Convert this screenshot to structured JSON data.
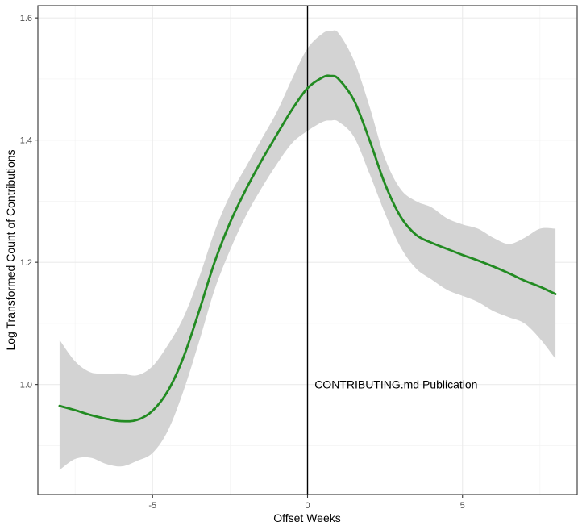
{
  "chart_data": {
    "type": "line",
    "xlabel": "Offset Weeks",
    "ylabel": "Log Transformed Count of Contributions",
    "xlim": [
      -8.7,
      8.7
    ],
    "ylim": [
      0.82,
      1.62
    ],
    "x_ticks": [
      -5,
      0,
      5
    ],
    "x_tick_labels": [
      "-5",
      "0",
      "5"
    ],
    "x_minor_ticks": [
      -7.5,
      -2.5,
      2.5,
      7.5
    ],
    "y_ticks": [
      1.0,
      1.2,
      1.4,
      1.6
    ],
    "y_tick_labels": [
      "1.0",
      "1.2",
      "1.4",
      "1.6"
    ],
    "y_minor_ticks": [
      0.9,
      1.1,
      1.3,
      1.5
    ],
    "grid": true,
    "vline": {
      "x": 0,
      "color": "#000000"
    },
    "annotation": {
      "text": "CONTRIBUTING.md Publication",
      "x": 0.2,
      "y": 1.0
    },
    "series": [
      {
        "color": "#228B22",
        "ribbon_color": "#d3d3d3",
        "x": [
          -8,
          -7.5,
          -7,
          -6.5,
          -6,
          -5.5,
          -5,
          -4.5,
          -4,
          -3.5,
          -3,
          -2.5,
          -2,
          -1.5,
          -1,
          -0.5,
          0,
          0.5,
          0.75,
          1,
          1.5,
          2,
          2.5,
          3,
          3.5,
          4,
          4.5,
          5,
          5.5,
          6,
          6.5,
          7,
          7.5,
          8
        ],
        "y": [
          0.965,
          0.958,
          0.95,
          0.944,
          0.94,
          0.942,
          0.957,
          0.99,
          1.045,
          1.12,
          1.2,
          1.265,
          1.318,
          1.365,
          1.408,
          1.45,
          1.485,
          1.503,
          1.505,
          1.5,
          1.465,
          1.4,
          1.328,
          1.275,
          1.245,
          1.232,
          1.222,
          1.212,
          1.203,
          1.193,
          1.182,
          1.17,
          1.16,
          1.148
        ],
        "lower": [
          0.86,
          0.878,
          0.88,
          0.87,
          0.866,
          0.875,
          0.888,
          0.925,
          0.99,
          1.07,
          1.155,
          1.22,
          1.275,
          1.32,
          1.36,
          1.395,
          1.415,
          1.43,
          1.432,
          1.43,
          1.405,
          1.345,
          1.28,
          1.225,
          1.19,
          1.172,
          1.155,
          1.145,
          1.135,
          1.12,
          1.11,
          1.1,
          1.075,
          1.042
        ],
        "upper": [
          1.073,
          1.038,
          1.02,
          1.018,
          1.018,
          1.015,
          1.03,
          1.065,
          1.11,
          1.175,
          1.25,
          1.31,
          1.355,
          1.4,
          1.445,
          1.5,
          1.55,
          1.575,
          1.578,
          1.575,
          1.53,
          1.455,
          1.37,
          1.32,
          1.3,
          1.29,
          1.272,
          1.262,
          1.255,
          1.24,
          1.23,
          1.24,
          1.255,
          1.255
        ]
      }
    ]
  }
}
